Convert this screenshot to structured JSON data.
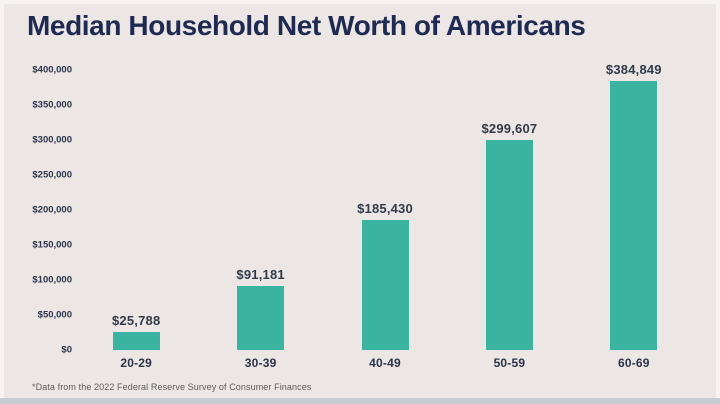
{
  "page": {
    "title": "Median Household Net Worth of Americans",
    "footnote": "*Data from the 2022 Federal Reserve Survey of Consumer Finances"
  },
  "colors": {
    "background": "#ece7e5",
    "title_text": "#1f2a52",
    "bar_fill": "#3ab4a1",
    "value_label_text": "#323a49",
    "axis_text": "#2b3349",
    "footnote_text": "#5c5a59",
    "bottom_strip": "#c6ccd4"
  },
  "chart_data": {
    "type": "bar",
    "title": "Median Household Net Worth of Americans",
    "categories": [
      "20-29",
      "30-39",
      "40-49",
      "50-59",
      "60-69"
    ],
    "values": [
      25788,
      91181,
      185430,
      299607,
      384849
    ],
    "value_labels": [
      "$25,788",
      "$91,181",
      "$185,430",
      "$299,607",
      "$384,849"
    ],
    "xlabel": "",
    "ylabel": "",
    "ylim": [
      0,
      400000
    ],
    "y_tick_values": [
      0,
      50000,
      100000,
      150000,
      200000,
      250000,
      300000,
      350000,
      400000
    ],
    "y_tick_labels": [
      "$0",
      "$50,000",
      "$100,000",
      "$150,000",
      "$200,000",
      "$250,000",
      "$300,000",
      "$350,000",
      "$400,000"
    ],
    "grid": false,
    "legend_position": "none",
    "footnote": "*Data from the 2022 Federal Reserve Survey of Consumer Finances"
  }
}
